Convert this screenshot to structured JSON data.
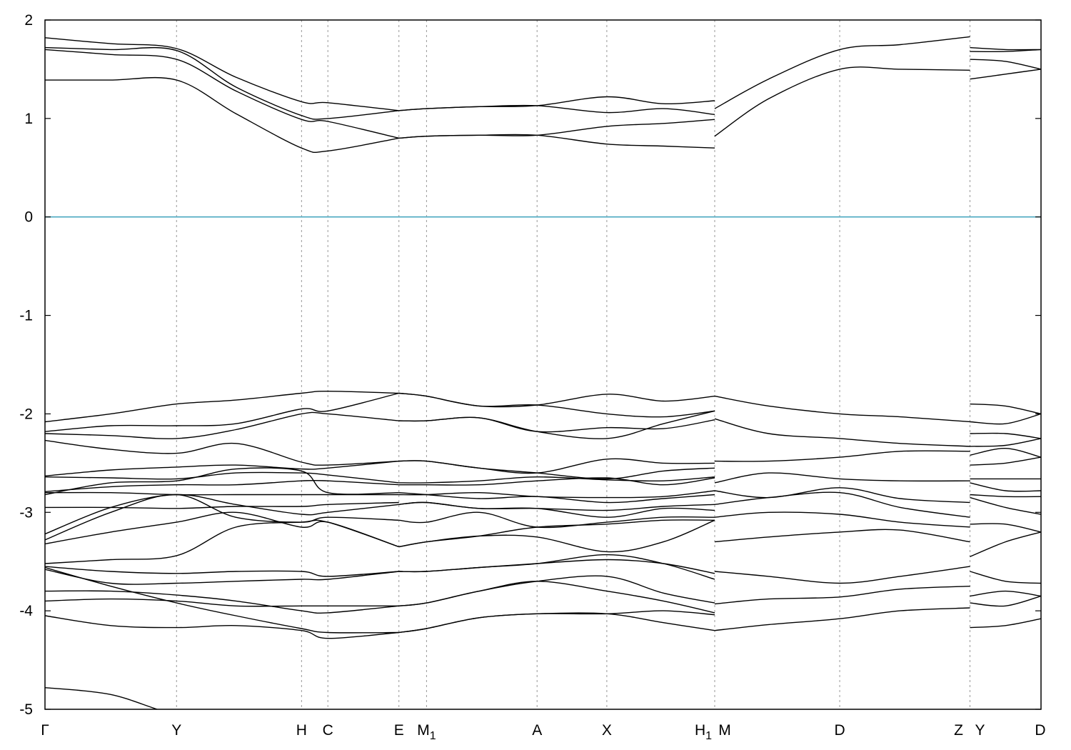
{
  "chart_data": {
    "type": "line",
    "title": "",
    "xlabel": "",
    "ylabel": "",
    "ylim": [
      -5,
      2
    ],
    "yticks": [
      "2",
      "1",
      "0",
      "-1",
      "-2",
      "-3",
      "-4",
      "-5"
    ],
    "fermi_level": {
      "y": 0,
      "color": "#4aa8c0"
    },
    "grid": "vertical dotted lines at high-symmetry points",
    "kpoints": [
      {
        "label": "Γ",
        "sub": "",
        "x": 0.0
      },
      {
        "label": "Y",
        "sub": "",
        "x": 1.0
      },
      {
        "label": "H",
        "sub": "",
        "x": 1.95
      },
      {
        "label": "C",
        "sub": "",
        "x": 2.15
      },
      {
        "label": "E",
        "sub": "",
        "x": 2.69
      },
      {
        "label": "M",
        "sub": "1",
        "x": 2.9
      },
      {
        "label": "A",
        "sub": "",
        "x": 3.74
      },
      {
        "label": "X",
        "sub": "",
        "x": 4.27
      },
      {
        "label": "H",
        "sub": "1",
        "x": 5.09
      },
      {
        "label": "M",
        "sub": "",
        "x": 5.09
      },
      {
        "label": "D",
        "sub": "",
        "x": 6.04
      },
      {
        "label": "Z",
        "sub": "",
        "x": 7.03
      },
      {
        "label": "Y",
        "sub": "",
        "x": 7.03
      },
      {
        "label": "D",
        "sub": "",
        "x": 7.57
      }
    ],
    "xlim": [
      0,
      7.57
    ],
    "segments": [
      {
        "x": [
          0,
          0.5,
          1.0,
          1.45,
          1.95,
          2.15,
          2.69
        ],
        "series": [
          {
            "values": [
              1.82,
              1.76,
              1.71,
              1.42,
              1.17,
              1.16,
              1.08
            ]
          },
          {
            "values": [
              1.72,
              1.7,
              1.69,
              1.32,
              1.03,
              1.0,
              1.08
            ]
          },
          {
            "values": [
              1.7,
              1.65,
              1.6,
              1.28,
              0.99,
              0.97,
              0.8
            ]
          },
          {
            "values": [
              1.39,
              1.39,
              1.39,
              1.05,
              0.7,
              0.67,
              0.8
            ]
          },
          {
            "values": [
              -2.08,
              -2.0,
              -1.9,
              -1.86,
              -1.79,
              -1.77,
              -1.79
            ]
          },
          {
            "values": [
              -2.18,
              -2.12,
              -2.12,
              -2.1,
              -1.95,
              -1.97,
              -1.79
            ]
          },
          {
            "values": [
              -2.2,
              -2.22,
              -2.25,
              -2.16,
              -2.0,
              -2.0,
              -2.07
            ]
          },
          {
            "values": [
              -2.27,
              -2.36,
              -2.4,
              -2.3,
              -2.49,
              -2.52,
              -2.48
            ]
          },
          {
            "values": [
              -2.63,
              -2.57,
              -2.54,
              -2.52,
              -2.56,
              -2.55,
              -2.48
            ]
          },
          {
            "values": [
              -2.64,
              -2.65,
              -2.66,
              -2.6,
              -2.6,
              -2.62,
              -2.7
            ]
          },
          {
            "values": [
              -2.79,
              -2.74,
              -2.72,
              -2.72,
              -2.68,
              -2.68,
              -2.72
            ]
          },
          {
            "values": [
              -2.8,
              -2.8,
              -2.82,
              -2.82,
              -2.82,
              -2.82,
              -2.82
            ]
          },
          {
            "values": [
              -2.82,
              -2.7,
              -2.68,
              -2.56,
              -2.58,
              -2.8,
              -2.8
            ]
          },
          {
            "values": [
              -2.95,
              -2.95,
              -2.96,
              -2.94,
              -2.94,
              -2.92,
              -2.9
            ]
          },
          {
            "values": [
              -3.22,
              -2.95,
              -2.82,
              -2.92,
              -3.02,
              -3.0,
              -2.92
            ]
          },
          {
            "values": [
              -3.28,
              -3.0,
              -2.82,
              -3.05,
              -3.1,
              -3.05,
              -3.08
            ]
          },
          {
            "values": [
              -3.32,
              -3.2,
              -3.1,
              -3.0,
              -3.15,
              -3.1,
              -3.35
            ]
          },
          {
            "values": [
              -3.52,
              -3.48,
              -3.44,
              -3.15,
              -3.1,
              -3.1,
              -3.35
            ]
          },
          {
            "values": [
              -3.55,
              -3.6,
              -3.62,
              -3.6,
              -3.6,
              -3.65,
              -3.6
            ]
          },
          {
            "values": [
              -3.58,
              -3.72,
              -3.72,
              -3.7,
              -3.68,
              -3.68,
              -3.6
            ]
          },
          {
            "values": [
              -3.8,
              -3.8,
              -3.84,
              -3.9,
              -4.0,
              -4.02,
              -3.95
            ]
          },
          {
            "values": [
              -3.9,
              -3.88,
              -3.9,
              -3.95,
              -3.95,
              -3.95,
              -3.95
            ]
          },
          {
            "values": [
              -3.56,
              -3.75,
              -3.92,
              -4.05,
              -4.18,
              -4.22,
              -4.22
            ]
          },
          {
            "values": [
              -4.05,
              -4.15,
              -4.17,
              -4.15,
              -4.2,
              -4.28,
              -4.22
            ]
          },
          {
            "values": [
              -4.78,
              -4.85,
              -5.05,
              -5.05,
              -5.05,
              -5.05,
              -5.05
            ]
          }
        ]
      },
      {
        "x": [
          2.69,
          2.9,
          3.3,
          3.74,
          4.27,
          4.7,
          5.09
        ],
        "series": [
          {
            "values": [
              1.08,
              1.1,
              1.12,
              1.13,
              1.22,
              1.15,
              1.18
            ]
          },
          {
            "values": [
              1.08,
              1.1,
              1.12,
              1.13,
              1.06,
              1.1,
              1.04
            ]
          },
          {
            "values": [
              0.8,
              0.82,
              0.83,
              0.83,
              0.92,
              0.95,
              0.99
            ]
          },
          {
            "values": [
              0.8,
              0.82,
              0.83,
              0.83,
              0.74,
              0.72,
              0.7
            ]
          },
          {
            "values": [
              -1.79,
              -1.82,
              -1.92,
              -1.91,
              -1.8,
              -1.87,
              -1.82
            ]
          },
          {
            "values": [
              -1.79,
              -1.82,
              -1.92,
              -1.91,
              -2.0,
              -2.03,
              -1.97
            ]
          },
          {
            "values": [
              -2.07,
              -2.07,
              -2.04,
              -2.18,
              -2.14,
              -2.15,
              -2.06
            ]
          },
          {
            "values": [
              -2.07,
              -2.07,
              -2.04,
              -2.18,
              -2.25,
              -2.1,
              -1.97
            ]
          },
          {
            "values": [
              -2.48,
              -2.48,
              -2.55,
              -2.6,
              -2.46,
              -2.5,
              -2.5
            ]
          },
          {
            "values": [
              -2.48,
              -2.48,
              -2.55,
              -2.6,
              -2.66,
              -2.58,
              -2.55
            ]
          },
          {
            "values": [
              -2.7,
              -2.7,
              -2.68,
              -2.64,
              -2.67,
              -2.68,
              -2.64
            ]
          },
          {
            "values": [
              -2.72,
              -2.72,
              -2.72,
              -2.68,
              -2.65,
              -2.72,
              -2.65
            ]
          },
          {
            "values": [
              -2.82,
              -2.82,
              -2.8,
              -2.84,
              -2.85,
              -2.84,
              -2.78
            ]
          },
          {
            "values": [
              -2.8,
              -2.82,
              -2.86,
              -2.84,
              -2.9,
              -2.86,
              -2.82
            ]
          },
          {
            "values": [
              -2.92,
              -2.9,
              -2.96,
              -2.96,
              -2.98,
              -2.94,
              -2.92
            ]
          },
          {
            "values": [
              -2.92,
              -2.9,
              -2.96,
              -2.96,
              -3.05,
              -2.96,
              -2.98
            ]
          },
          {
            "values": [
              -3.08,
              -3.1,
              -3.0,
              -3.15,
              -3.1,
              -3.05,
              -3.05
            ]
          },
          {
            "values": [
              -3.35,
              -3.3,
              -3.24,
              -3.15,
              -3.12,
              -3.08,
              -3.08
            ]
          },
          {
            "values": [
              -3.35,
              -3.3,
              -3.24,
              -3.25,
              -3.4,
              -3.3,
              -3.08
            ]
          },
          {
            "values": [
              -3.6,
              -3.6,
              -3.56,
              -3.52,
              -3.48,
              -3.52,
              -3.62
            ]
          },
          {
            "values": [
              -3.6,
              -3.6,
              -3.56,
              -3.52,
              -3.43,
              -3.52,
              -3.68
            ]
          },
          {
            "values": [
              -3.95,
              -3.92,
              -3.8,
              -3.7,
              -3.65,
              -3.82,
              -3.92
            ]
          },
          {
            "values": [
              -3.95,
              -3.92,
              -3.8,
              -3.7,
              -3.8,
              -3.9,
              -4.02
            ]
          },
          {
            "values": [
              -4.22,
              -4.18,
              -4.07,
              -4.03,
              -4.03,
              -4.0,
              -4.04
            ]
          },
          {
            "values": [
              -4.22,
              -4.18,
              -4.07,
              -4.03,
              -4.03,
              -4.12,
              -4.2
            ]
          }
        ]
      },
      {
        "x": [
          5.09,
          5.5,
          6.04,
          6.5,
          7.03
        ],
        "series": [
          {
            "values": [
              1.1,
              1.4,
              1.7,
              1.75,
              1.83
            ]
          },
          {
            "values": [
              0.82,
              1.2,
              1.5,
              1.5,
              1.49
            ]
          },
          {
            "values": [
              -1.82,
              -1.92,
              -2.0,
              -2.03,
              -2.08
            ]
          },
          {
            "values": [
              -2.05,
              -2.2,
              -2.25,
              -2.3,
              -2.33
            ]
          },
          {
            "values": [
              -2.48,
              -2.48,
              -2.44,
              -2.38,
              -2.38
            ]
          },
          {
            "values": [
              -2.7,
              -2.6,
              -2.66,
              -2.68,
              -2.68
            ]
          },
          {
            "values": [
              -2.78,
              -2.85,
              -2.75,
              -2.86,
              -2.9
            ]
          },
          {
            "values": [
              -2.92,
              -2.85,
              -2.8,
              -2.95,
              -3.05
            ]
          },
          {
            "values": [
              -3.05,
              -3.0,
              -3.02,
              -3.1,
              -3.15
            ]
          },
          {
            "values": [
              -3.3,
              -3.25,
              -3.2,
              -3.18,
              -3.3
            ]
          },
          {
            "values": [
              -3.6,
              -3.65,
              -3.72,
              -3.65,
              -3.55
            ]
          },
          {
            "values": [
              -3.93,
              -3.88,
              -3.86,
              -3.78,
              -3.75
            ]
          },
          {
            "values": [
              -4.2,
              -4.14,
              -4.08,
              -4.0,
              -3.97
            ]
          }
        ]
      },
      {
        "x": [
          7.03,
          7.3,
          7.57
        ],
        "series": [
          {
            "values": [
              1.72,
              1.7,
              1.7
            ]
          },
          {
            "values": [
              1.68,
              1.68,
              1.7
            ]
          },
          {
            "values": [
              1.6,
              1.58,
              1.5
            ]
          },
          {
            "values": [
              1.4,
              1.45,
              1.5
            ]
          },
          {
            "values": [
              -1.9,
              -1.92,
              -2.0
            ]
          },
          {
            "values": [
              -2.08,
              -2.1,
              -2.0
            ]
          },
          {
            "values": [
              -2.2,
              -2.2,
              -2.25
            ]
          },
          {
            "values": [
              -2.33,
              -2.32,
              -2.25
            ]
          },
          {
            "values": [
              -2.42,
              -2.35,
              -2.44
            ]
          },
          {
            "values": [
              -2.52,
              -2.5,
              -2.44
            ]
          },
          {
            "values": [
              -2.66,
              -2.66,
              -2.66
            ]
          },
          {
            "values": [
              -2.7,
              -2.78,
              -2.78
            ]
          },
          {
            "values": [
              -2.82,
              -2.84,
              -2.84
            ]
          },
          {
            "values": [
              -2.85,
              -2.95,
              -3.02
            ]
          },
          {
            "values": [
              -3.12,
              -3.12,
              -3.2
            ]
          },
          {
            "values": [
              -3.45,
              -3.3,
              -3.2
            ]
          },
          {
            "values": [
              -3.6,
              -3.7,
              -3.72
            ]
          },
          {
            "values": [
              -3.85,
              -3.8,
              -3.85
            ]
          },
          {
            "values": [
              -3.92,
              -3.95,
              -3.85
            ]
          },
          {
            "values": [
              -4.17,
              -4.15,
              -4.08
            ]
          }
        ]
      }
    ]
  }
}
